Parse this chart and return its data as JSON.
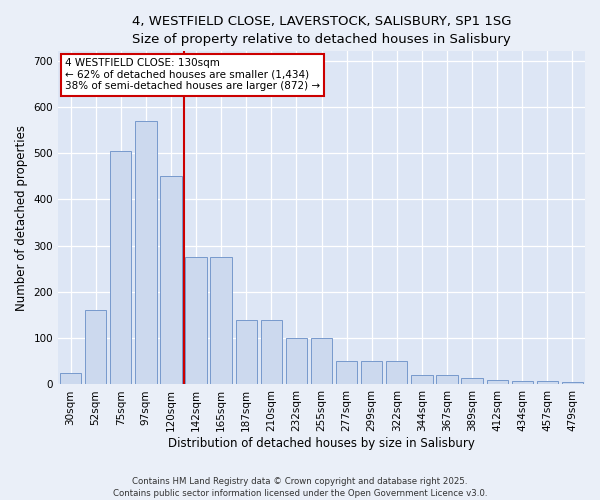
{
  "title_line1": "4, WESTFIELD CLOSE, LAVERSTOCK, SALISBURY, SP1 1SG",
  "title_line2": "Size of property relative to detached houses in Salisbury",
  "xlabel": "Distribution of detached houses by size in Salisbury",
  "ylabel": "Number of detached properties",
  "footer": "Contains HM Land Registry data © Crown copyright and database right 2025.\nContains public sector information licensed under the Open Government Licence v3.0.",
  "categories": [
    "30sqm",
    "52sqm",
    "75sqm",
    "97sqm",
    "120sqm",
    "142sqm",
    "165sqm",
    "187sqm",
    "210sqm",
    "232sqm",
    "255sqm",
    "277sqm",
    "299sqm",
    "322sqm",
    "344sqm",
    "367sqm",
    "389sqm",
    "412sqm",
    "434sqm",
    "457sqm",
    "479sqm"
  ],
  "values": [
    25,
    160,
    505,
    570,
    450,
    275,
    275,
    140,
    140,
    100,
    100,
    50,
    50,
    50,
    20,
    20,
    15,
    10,
    8,
    8,
    5
  ],
  "bar_color": "#ccd9ee",
  "bar_edge_color": "#7799cc",
  "annotation_line1": "4 WESTFIELD CLOSE: 130sqm",
  "annotation_line2": "← 62% of detached houses are smaller (1,434)",
  "annotation_line3": "38% of semi-detached houses are larger (872) →",
  "vline_color": "#cc0000",
  "annotation_box_color": "#ffffff",
  "annotation_box_edge": "#cc0000",
  "ylim": [
    0,
    720
  ],
  "yticks": [
    0,
    100,
    200,
    300,
    400,
    500,
    600,
    700
  ],
  "background_color": "#dde6f5",
  "fig_background_color": "#eaeff8",
  "grid_color": "#ffffff",
  "title_fontsize": 9.5,
  "axis_label_fontsize": 8.5,
  "tick_fontsize": 7.5,
  "annotation_fontsize": 7.5,
  "footer_fontsize": 6.2
}
